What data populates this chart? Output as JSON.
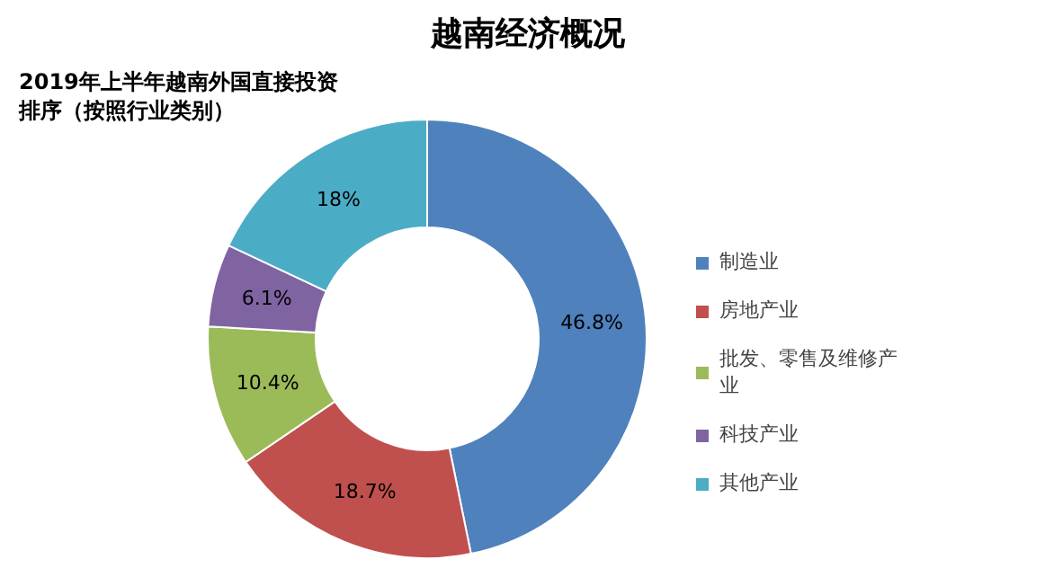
{
  "chart_data": {
    "type": "donut",
    "title": "越南经济概况",
    "subtitle": "2019年上半年越南外国直接投资排序（按照行业类别）",
    "categories": [
      "制造业",
      "房地产业",
      "批发、零售及维修产业",
      "科技产业",
      "其他产业"
    ],
    "values": [
      46.8,
      18.7,
      10.4,
      6.1,
      18
    ],
    "colors": [
      "#4f81bd",
      "#c0504d",
      "#9bbb59",
      "#8064a2",
      "#4bacc6"
    ],
    "value_labels": [
      "46.8%",
      "18.7%",
      "10.4%",
      "6.1%",
      "18%"
    ],
    "legend": "right"
  }
}
